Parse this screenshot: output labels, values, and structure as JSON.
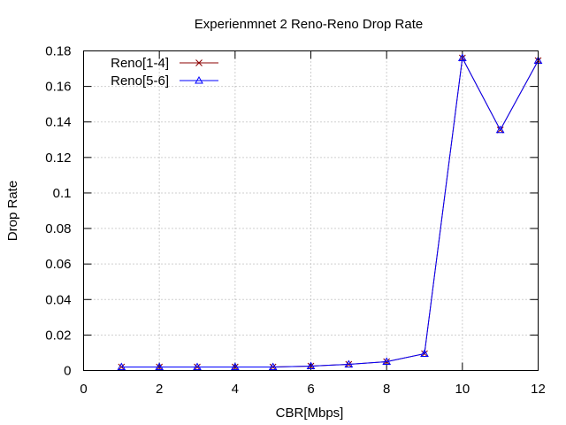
{
  "chart_data": {
    "type": "line",
    "title": "Experienmnet 2 Reno-Reno Drop Rate",
    "xlabel": "CBR[Mbps]",
    "ylabel": "Drop Rate",
    "xlim": [
      0,
      12
    ],
    "ylim": [
      0,
      0.18
    ],
    "xticks": [
      0,
      2,
      4,
      6,
      8,
      10,
      12
    ],
    "xtick_labels": [
      "0",
      "2",
      "4",
      "6",
      "8",
      "10",
      "12"
    ],
    "yticks": [
      0,
      0.02,
      0.04,
      0.06,
      0.08,
      0.1,
      0.12,
      0.14,
      0.16,
      0.18
    ],
    "ytick_labels": [
      "0",
      "0.02",
      "0.04",
      "0.06",
      "0.08",
      "0.1",
      "0.12",
      "0.14",
      "0.16",
      "0.18"
    ],
    "grid": true,
    "legend": "top-left",
    "x": [
      1,
      2,
      3,
      4,
      5,
      6,
      7,
      8,
      9,
      10,
      11,
      12
    ],
    "series": [
      {
        "name": "Reno[1-4]",
        "color": "#8b0000",
        "marker": "x",
        "values": [
          0.002,
          0.002,
          0.002,
          0.002,
          0.002,
          0.0025,
          0.0035,
          0.005,
          0.0095,
          0.176,
          0.1355,
          0.1745
        ]
      },
      {
        "name": "Reno[5-6]",
        "color": "#0000ff",
        "marker": "triangle",
        "values": [
          0.002,
          0.002,
          0.002,
          0.002,
          0.002,
          0.0025,
          0.0035,
          0.005,
          0.0095,
          0.176,
          0.1355,
          0.1745
        ]
      }
    ]
  }
}
